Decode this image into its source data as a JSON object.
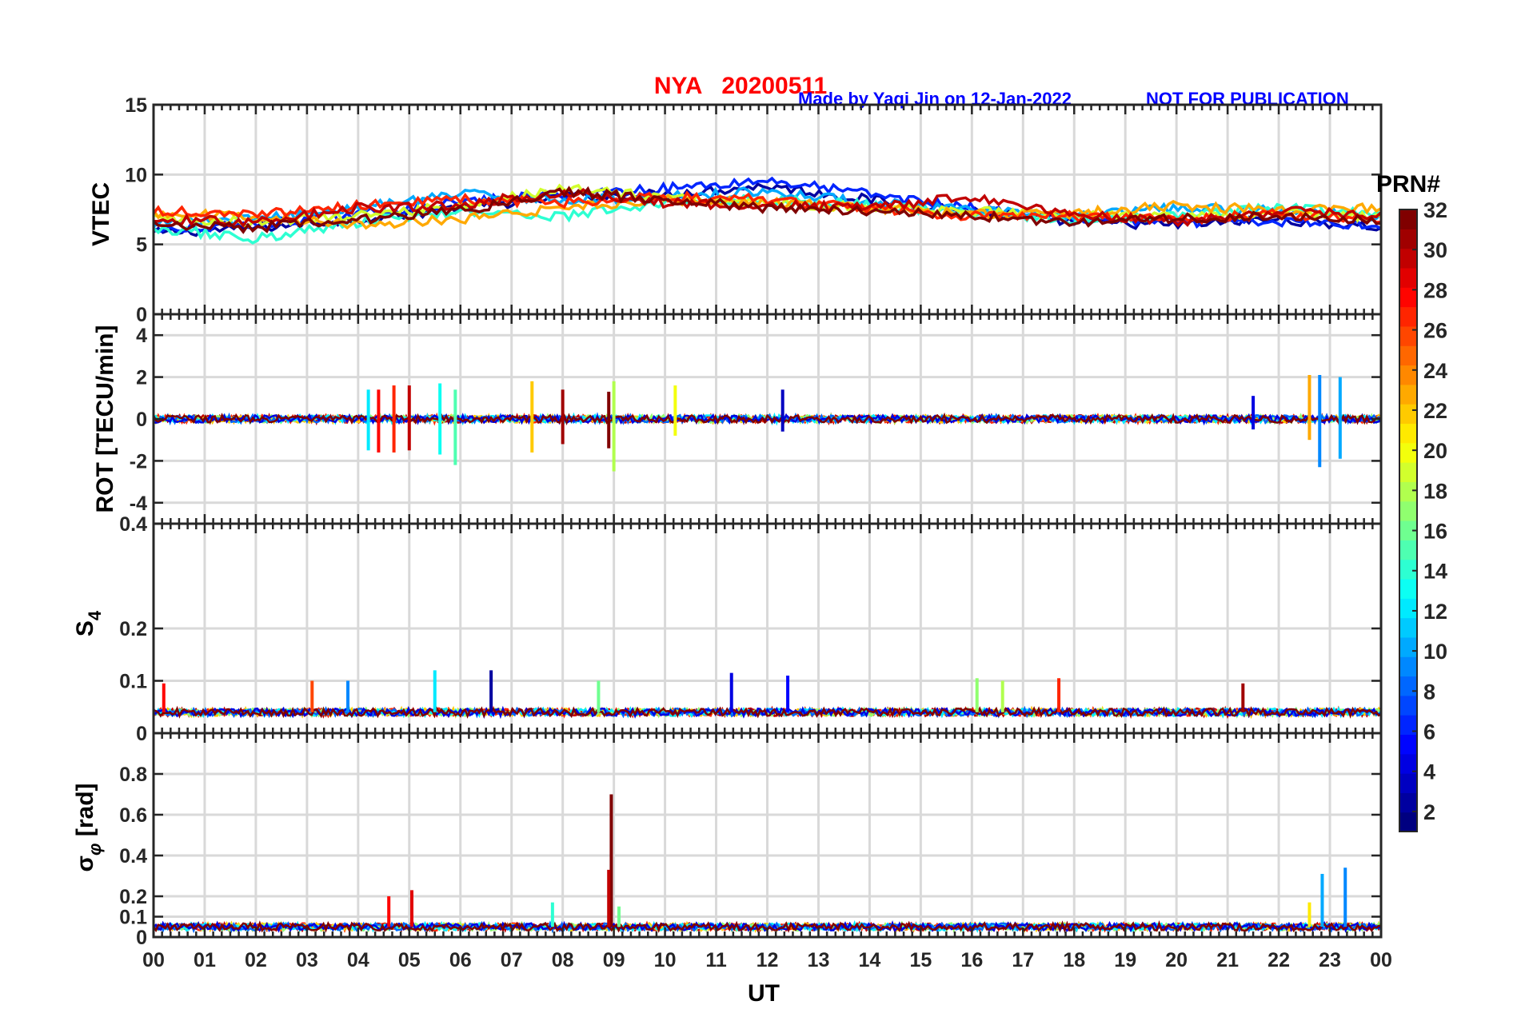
{
  "header": {
    "station_date": "NYA   20200511",
    "credit": "Made by Yaqi Jin on 12-Jan-2022",
    "notice": "NOT FOR PUBLICATION"
  },
  "colorbar": {
    "title": "PRN#",
    "ticks": [
      "2",
      "4",
      "6",
      "8",
      "10",
      "12",
      "14",
      "16",
      "18",
      "20",
      "22",
      "24",
      "26",
      "28",
      "30",
      "32"
    ],
    "range": [
      1,
      32
    ],
    "colormap": "jet"
  },
  "x_axis": {
    "label": "UT",
    "tick_labels": [
      "00",
      "01",
      "02",
      "03",
      "04",
      "05",
      "06",
      "07",
      "08",
      "09",
      "10",
      "11",
      "12",
      "13",
      "14",
      "15",
      "16",
      "17",
      "18",
      "19",
      "20",
      "21",
      "22",
      "23",
      "00"
    ],
    "range_hours": [
      0,
      24
    ]
  },
  "colors": {
    "title": "#ff0000",
    "credit": "#0000ff",
    "grid": "#d9d9d9",
    "axes": "#262626"
  },
  "chart_data": [
    {
      "type": "line",
      "panel": "vtec",
      "ylabel": "VTEC",
      "ylim": [
        0,
        15
      ],
      "yticks": [
        "0",
        "5",
        "10",
        "15"
      ],
      "grid": true,
      "series": [
        {
          "prn": 2,
          "x": [
            0,
            2,
            4,
            6,
            8,
            10,
            12,
            14,
            16,
            18,
            20,
            22,
            24
          ],
          "values": [
            5.8,
            6.2,
            6.8,
            7.6,
            8.4,
            8.6,
            9.2,
            8.2,
            7.4,
            6.6,
            6.4,
            6.8,
            6.2
          ]
        },
        {
          "prn": 6,
          "x": [
            0,
            2,
            4,
            6,
            8,
            10,
            12,
            14,
            16,
            18,
            20,
            22,
            24
          ],
          "values": [
            6.0,
            6.4,
            7.2,
            8.0,
            8.6,
            9.0,
            9.6,
            8.6,
            7.6,
            6.8,
            6.6,
            6.6,
            6.4
          ]
        },
        {
          "prn": 10,
          "x": [
            0,
            2,
            4,
            6,
            8,
            10,
            12,
            14,
            16,
            18,
            20,
            22,
            24
          ],
          "values": [
            6.6,
            6.8,
            7.6,
            8.6,
            8.2,
            8.4,
            8.8,
            8.0,
            7.4,
            7.0,
            7.6,
            7.4,
            7.0
          ]
        },
        {
          "prn": 14,
          "x": [
            0,
            2,
            4,
            6,
            8,
            10,
            12,
            14,
            16,
            18,
            20,
            22,
            24
          ],
          "values": [
            6.2,
            5.4,
            6.6,
            7.4,
            7.0,
            8.0,
            8.2,
            7.8,
            7.2,
            6.8,
            7.0,
            7.6,
            7.2
          ]
        },
        {
          "prn": 19,
          "x": [
            0,
            2,
            4,
            6,
            8,
            10,
            12,
            14,
            16,
            18,
            20,
            22,
            24
          ],
          "values": [
            6.8,
            6.6,
            7.0,
            7.8,
            9.0,
            8.4,
            8.0,
            7.6,
            7.4,
            7.0,
            7.0,
            7.2,
            7.0
          ]
        },
        {
          "prn": 23,
          "x": [
            0,
            2,
            4,
            6,
            8,
            10,
            12,
            14,
            16,
            18,
            20,
            22,
            24
          ],
          "values": [
            7.2,
            7.0,
            6.4,
            6.8,
            7.6,
            8.2,
            8.0,
            7.6,
            7.2,
            7.2,
            7.8,
            7.4,
            7.6
          ]
        },
        {
          "prn": 27,
          "x": [
            0,
            2,
            4,
            6,
            8,
            10,
            12,
            14,
            16,
            18,
            20,
            22,
            24
          ],
          "values": [
            7.4,
            7.2,
            7.8,
            8.2,
            8.0,
            8.4,
            8.2,
            7.6,
            7.0,
            7.0,
            6.8,
            7.2,
            6.8
          ]
        },
        {
          "prn": 30,
          "x": [
            0,
            2,
            4,
            6,
            8,
            10,
            12,
            14,
            16,
            18,
            20,
            22,
            24
          ],
          "values": [
            6.8,
            6.6,
            7.6,
            7.8,
            8.8,
            8.0,
            7.8,
            7.6,
            8.4,
            7.2,
            6.6,
            7.4,
            7.0
          ]
        },
        {
          "prn": 32,
          "x": [
            0,
            2,
            4,
            6,
            8,
            10,
            12,
            14,
            16,
            18,
            20,
            22,
            24
          ],
          "values": [
            6.4,
            6.2,
            6.8,
            7.4,
            8.8,
            8.2,
            7.6,
            7.4,
            7.0,
            6.6,
            6.8,
            7.0,
            6.8
          ]
        }
      ]
    },
    {
      "type": "line",
      "panel": "rot",
      "ylabel": "ROT [TECU/min]",
      "ylim": [
        -5,
        5
      ],
      "yticks": [
        "-4",
        "-2",
        "0",
        "2",
        "4"
      ],
      "grid": true,
      "baseline": 0,
      "spikes": [
        {
          "prn": 3,
          "x": 12.3,
          "values": [
            1.4,
            -0.6
          ]
        },
        {
          "prn": 4,
          "x": 21.5,
          "values": [
            1.1,
            -0.5
          ]
        },
        {
          "prn": 9,
          "x": 22.8,
          "values": [
            2.1,
            -2.3
          ]
        },
        {
          "prn": 10,
          "x": 23.2,
          "values": [
            2.0,
            -1.9
          ]
        },
        {
          "prn": 12,
          "x": 4.2,
          "values": [
            1.4,
            -1.5
          ]
        },
        {
          "prn": 13,
          "x": 5.6,
          "values": [
            1.7,
            -1.7
          ]
        },
        {
          "prn": 15,
          "x": 5.9,
          "values": [
            1.4,
            -2.2
          ]
        },
        {
          "prn": 18,
          "x": 9.0,
          "values": [
            1.8,
            -2.5
          ]
        },
        {
          "prn": 20,
          "x": 10.2,
          "values": [
            1.6,
            -0.8
          ]
        },
        {
          "prn": 22,
          "x": 7.4,
          "values": [
            1.8,
            -1.6
          ]
        },
        {
          "prn": 23,
          "x": 22.6,
          "values": [
            2.1,
            -1.0
          ]
        },
        {
          "prn": 27,
          "x": 4.7,
          "values": [
            1.6,
            -1.6
          ]
        },
        {
          "prn": 28,
          "x": 4.4,
          "values": [
            1.4,
            -1.6
          ]
        },
        {
          "prn": 30,
          "x": 5.0,
          "values": [
            1.6,
            -1.5
          ]
        },
        {
          "prn": 31,
          "x": 8.0,
          "values": [
            1.4,
            -1.2
          ]
        },
        {
          "prn": 32,
          "x": 8.9,
          "values": [
            1.3,
            -1.4
          ]
        }
      ]
    },
    {
      "type": "line",
      "panel": "s4",
      "ylabel": "S4",
      "ylim": [
        0,
        0.4
      ],
      "yticks": [
        "0",
        "0.1",
        "0.2",
        "0.4"
      ],
      "grid": true,
      "baseline": 0.04,
      "spikes": [
        {
          "prn": 2,
          "x": 6.6,
          "value": 0.12
        },
        {
          "prn": 4,
          "x": 11.3,
          "value": 0.115
        },
        {
          "prn": 5,
          "x": 12.4,
          "value": 0.11
        },
        {
          "prn": 9,
          "x": 3.8,
          "value": 0.1
        },
        {
          "prn": 12,
          "x": 5.5,
          "value": 0.12
        },
        {
          "prn": 16,
          "x": 8.7,
          "value": 0.1
        },
        {
          "prn": 17,
          "x": 16.1,
          "value": 0.105
        },
        {
          "prn": 18,
          "x": 16.6,
          "value": 0.1
        },
        {
          "prn": 26,
          "x": 3.1,
          "value": 0.1
        },
        {
          "prn": 27,
          "x": 17.7,
          "value": 0.105
        },
        {
          "prn": 28,
          "x": 0.2,
          "value": 0.095
        },
        {
          "prn": 31,
          "x": 21.3,
          "value": 0.095
        }
      ]
    },
    {
      "type": "line",
      "panel": "sigma_phi",
      "ylabel": "σ_φ [rad]",
      "ylim": [
        0,
        1.0
      ],
      "yticks": [
        "0",
        "0.1",
        "0.2",
        "0.4",
        "0.6",
        "0.8"
      ],
      "grid": true,
      "baseline": 0.05,
      "spikes": [
        {
          "prn": 32,
          "x": 8.95,
          "value": 0.7
        },
        {
          "prn": 30,
          "x": 8.9,
          "value": 0.33
        },
        {
          "prn": 28,
          "x": 4.6,
          "value": 0.2
        },
        {
          "prn": 29,
          "x": 5.05,
          "value": 0.23
        },
        {
          "prn": 10,
          "x": 22.85,
          "value": 0.31
        },
        {
          "prn": 9,
          "x": 23.3,
          "value": 0.34
        },
        {
          "prn": 14,
          "x": 7.8,
          "value": 0.17
        },
        {
          "prn": 21,
          "x": 22.6,
          "value": 0.17
        },
        {
          "prn": 16,
          "x": 9.1,
          "value": 0.15
        }
      ]
    }
  ]
}
